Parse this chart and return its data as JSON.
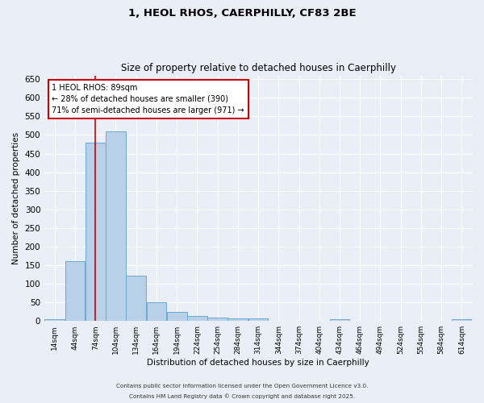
{
  "title_line1": "1, HEOL RHOS, CAERPHILLY, CF83 2BE",
  "title_line2": "Size of property relative to detached houses in Caerphilly",
  "xlabel": "Distribution of detached houses by size in Caerphilly",
  "ylabel": "Number of detached properties",
  "bin_edges": [
    14,
    44,
    74,
    104,
    134,
    164,
    194,
    224,
    254,
    284,
    314,
    344,
    374,
    404,
    434,
    464,
    494,
    524,
    554,
    584,
    614,
    644
  ],
  "bar_values": [
    5,
    160,
    480,
    510,
    122,
    50,
    25,
    13,
    10,
    8,
    7,
    0,
    0,
    0,
    5,
    0,
    0,
    0,
    0,
    0,
    5
  ],
  "bar_color": "#b8d0e8",
  "bar_edge_color": "#6aaad4",
  "property_size": 89,
  "red_line_color": "#cc0000",
  "annotation_text": "1 HEOL RHOS: 89sqm\n← 28% of detached houses are smaller (390)\n71% of semi-detached houses are larger (971) →",
  "annotation_box_color": "#cc0000",
  "ylim": [
    0,
    660
  ],
  "yticks": [
    0,
    50,
    100,
    150,
    200,
    250,
    300,
    350,
    400,
    450,
    500,
    550,
    600,
    650
  ],
  "bg_color": "#eaeff7",
  "grid_color": "#ffffff",
  "footer_line1": "Contains HM Land Registry data © Crown copyright and database right 2025.",
  "footer_line2": "Contains public sector information licensed under the Open Government Licence v3.0."
}
